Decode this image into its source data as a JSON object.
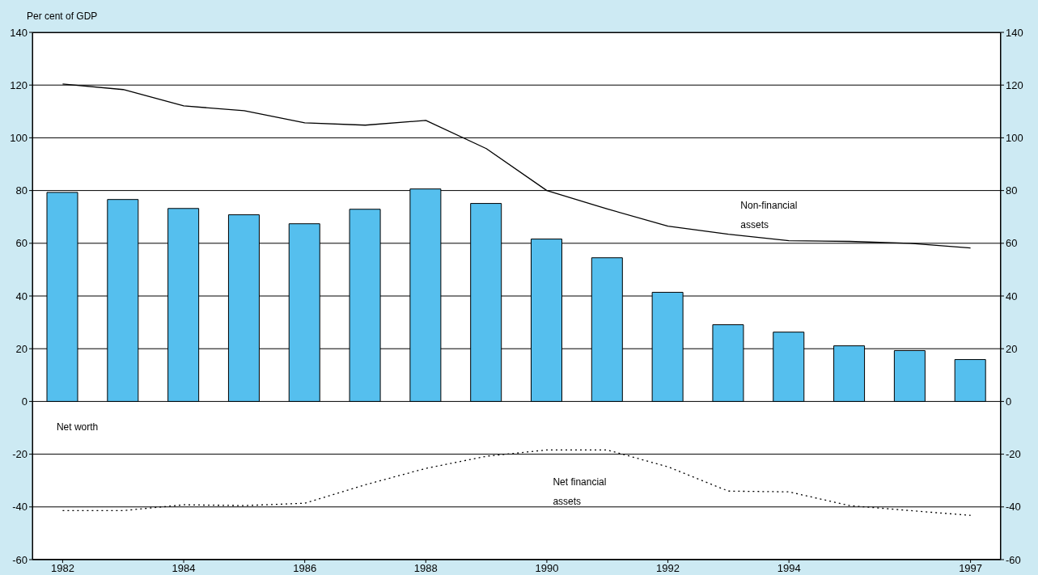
{
  "chart_data": {
    "type": "bar",
    "ylabel": "Per cent of GDP",
    "x": [
      1982,
      1983,
      1984,
      1985,
      1986,
      1987,
      1988,
      1989,
      1990,
      1991,
      1992,
      1993,
      1994,
      1995,
      1996,
      1997
    ],
    "xlim": [
      1981.5,
      1997.5
    ],
    "xticks": [
      1982,
      1984,
      1986,
      1988,
      1990,
      1992,
      1994,
      1997
    ],
    "ylim": [
      -60,
      140
    ],
    "yticks": [
      -60,
      -40,
      -20,
      0,
      20,
      40,
      60,
      80,
      100,
      120,
      140
    ],
    "y2lim": [
      -60,
      140
    ],
    "y2ticks": [
      -60,
      -40,
      -20,
      0,
      20,
      40,
      60,
      80,
      100,
      120,
      140
    ],
    "grid": "y",
    "legend": false,
    "marker": "none",
    "series": [
      {
        "name": "Net worth",
        "color": "#55bfee",
        "values": [
          79.3,
          76.6,
          73.2,
          70.8,
          67.4,
          72.9,
          80.6,
          75.1,
          61.6,
          54.5,
          41.4,
          29.1,
          26.3,
          21.1,
          19.3,
          15.9
        ]
      },
      {
        "name": "Non-financial assets",
        "type": "line",
        "color": "#000000",
        "line_style": "solid",
        "values": [
          120.4,
          118.3,
          112.1,
          110.3,
          105.7,
          104.8,
          106.6,
          95.9,
          80,
          73,
          66.5,
          63.4,
          61,
          60.7,
          60,
          58.2
        ]
      },
      {
        "name": "Net financial assets",
        "type": "line",
        "color": "#000000",
        "line_style": "dotted",
        "values": [
          -41.4,
          -41.4,
          -39.2,
          -39.5,
          -38.6,
          -31.6,
          -25.4,
          -20.8,
          -18.4,
          -18.4,
          -24.8,
          -34,
          -34.3,
          -39.5,
          -41.4,
          -43.2
        ]
      }
    ]
  }
}
